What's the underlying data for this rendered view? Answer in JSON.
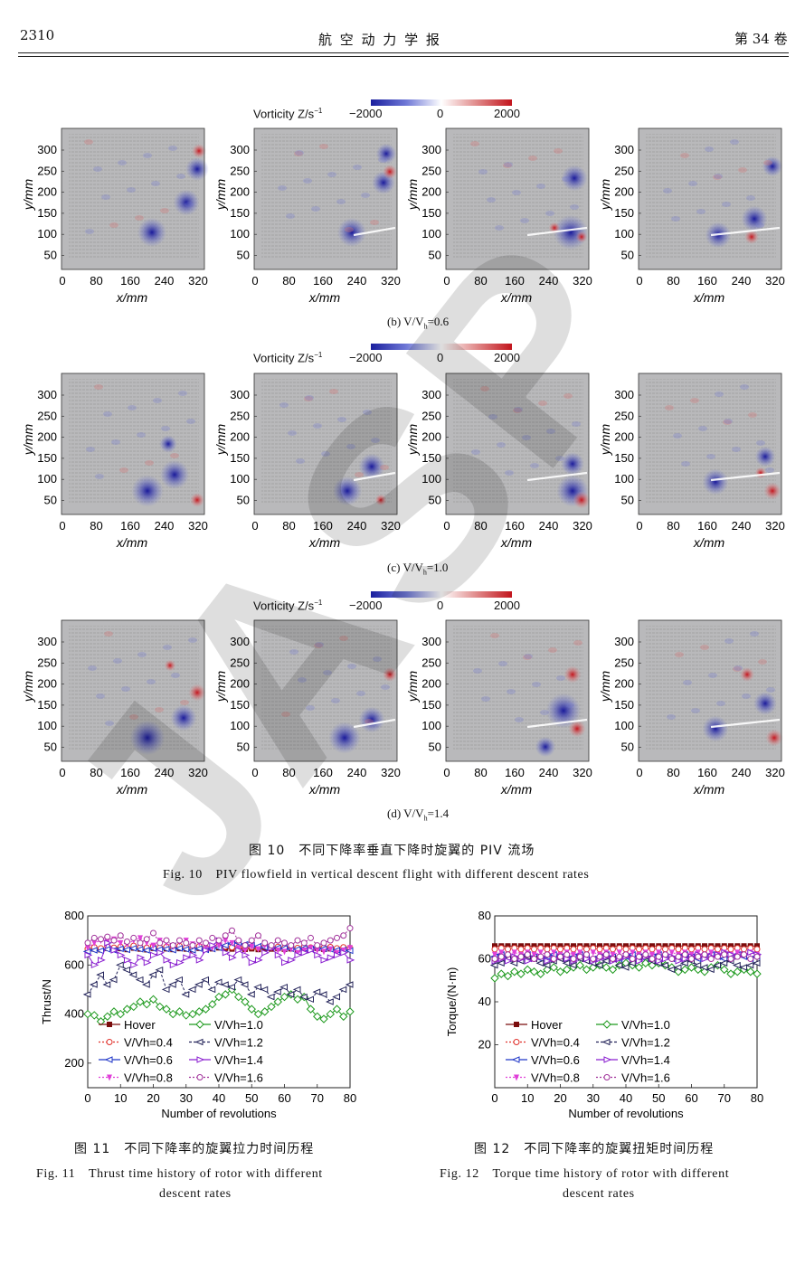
{
  "header": {
    "page_number": "2310",
    "journal": "航 空 动 力 学 报",
    "volume": "第 34 卷"
  },
  "colorbar": {
    "label": "Vorticity Z/s",
    "superscript": "−1",
    "min": "−2000",
    "mid": "0",
    "max": "2000"
  },
  "panels": {
    "xlabel": "x/mm",
    "ylabel": "y/mm",
    "x_ticks": [
      "0",
      "80",
      "160",
      "240",
      "320"
    ],
    "y_ticks": [
      "300",
      "250",
      "200",
      "150",
      "100",
      "50"
    ]
  },
  "rows": [
    {
      "caption_prefix": "(b) V/V",
      "caption_sub": "h",
      "caption_suffix": "=0.6"
    },
    {
      "caption_prefix": "(c) V/V",
      "caption_sub": "h",
      "caption_suffix": "=1.0"
    },
    {
      "caption_prefix": "(d) V/V",
      "caption_sub": "h",
      "caption_suffix": "=1.4"
    }
  ],
  "fig10": {
    "caption_cn": "图 10　不同下降率垂直下降时旋翼的 PIV 流场",
    "caption_en": "Fig. 10　PIV flowfield in vertical descent flight with different descent rates"
  },
  "fig11": {
    "caption_cn": "图 11　不同下降率的旋翼拉力时间历程",
    "caption_en1": "Fig. 11　Thrust time history of rotor with different",
    "caption_en2": "descent rates"
  },
  "fig12": {
    "caption_cn": "图 12　不同下降率的旋翼扭矩时间历程",
    "caption_en1": "Fig. 12　Torque time history of rotor with different",
    "caption_en2": "descent rates"
  },
  "watermark": "JASP",
  "colors": {
    "hover": "#7a0c0c",
    "v04": "#e0302a",
    "v06": "#1f36c8",
    "v08": "#e040d8",
    "v10": "#1e9a1e",
    "v12": "#24245a",
    "v14": "#8a1fd0",
    "v16": "#a0309a"
  },
  "chart_data": [
    {
      "type": "line",
      "xlabel": "Number of revolutions",
      "ylabel": "Thrust/N",
      "xlim": [
        0,
        80
      ],
      "ylim": [
        100,
        800
      ],
      "x_ticks": [
        0,
        10,
        20,
        30,
        40,
        50,
        60,
        70,
        80
      ],
      "y_ticks": [
        200,
        400,
        600,
        800
      ],
      "grid": false,
      "legend": "bottom-left, two columns",
      "x": [
        0,
        2,
        4,
        6,
        8,
        10,
        12,
        14,
        16,
        18,
        20,
        22,
        24,
        26,
        28,
        30,
        32,
        34,
        36,
        38,
        40,
        42,
        44,
        46,
        48,
        50,
        52,
        54,
        56,
        58,
        60,
        62,
        64,
        66,
        68,
        70,
        72,
        74,
        76,
        78,
        80
      ],
      "series": [
        {
          "name": "Hover",
          "values": [
            660,
            665,
            662,
            668,
            664,
            667,
            663,
            669,
            665,
            662,
            668,
            664,
            666,
            663,
            667,
            665,
            662,
            668,
            664,
            666,
            670,
            668,
            665,
            667,
            664,
            666,
            663,
            668,
            665,
            667,
            664,
            666,
            663,
            667,
            665,
            668,
            664,
            666,
            662,
            665,
            663
          ]
        },
        {
          "name": "V/Vh=0.4",
          "values": [
            665,
            672,
            668,
            676,
            670,
            674,
            669,
            678,
            672,
            670,
            676,
            671,
            674,
            668,
            677,
            672,
            669,
            676,
            671,
            674,
            678,
            675,
            672,
            674,
            670,
            673,
            669,
            676,
            672,
            674,
            670,
            673,
            669,
            675,
            671,
            676,
            670,
            673,
            668,
            672,
            669
          ]
        },
        {
          "name": "V/Vh=0.6",
          "values": [
            655,
            660,
            658,
            664,
            660,
            666,
            662,
            668,
            664,
            660,
            667,
            663,
            665,
            661,
            668,
            664,
            660,
            667,
            662,
            665,
            670,
            680,
            688,
            690,
            684,
            680,
            676,
            672,
            674,
            670,
            668,
            666,
            664,
            668,
            665,
            670,
            666,
            664,
            660,
            662,
            658
          ]
        },
        {
          "name": "V/Vh=0.8",
          "values": [
            670,
            690,
            700,
            695,
            705,
            690,
            685,
            700,
            710,
            690,
            680,
            700,
            690,
            675,
            695,
            700,
            685,
            690,
            675,
            670,
            680,
            700,
            690,
            670,
            660,
            675,
            665,
            680,
            670,
            660,
            655,
            665,
            650,
            660,
            670,
            660,
            655,
            665,
            650,
            660,
            670
          ]
        },
        {
          "name": "V/Vh=1.0",
          "values": [
            400,
            395,
            370,
            390,
            410,
            400,
            420,
            430,
            450,
            440,
            460,
            430,
            420,
            400,
            410,
            395,
            400,
            410,
            420,
            440,
            470,
            480,
            500,
            470,
            450,
            420,
            400,
            410,
            430,
            450,
            470,
            480,
            460,
            470,
            420,
            390,
            380,
            400,
            420,
            390,
            410
          ]
        },
        {
          "name": "V/Vh=1.2",
          "values": [
            480,
            520,
            560,
            520,
            540,
            600,
            580,
            560,
            540,
            520,
            560,
            580,
            500,
            520,
            540,
            480,
            500,
            520,
            540,
            500,
            530,
            520,
            510,
            540,
            520,
            480,
            510,
            500,
            470,
            490,
            510,
            480,
            500,
            470,
            460,
            490,
            480,
            450,
            470,
            500,
            520
          ]
        },
        {
          "name": "V/Vh=1.4",
          "values": [
            640,
            600,
            620,
            690,
            660,
            640,
            620,
            600,
            630,
            610,
            640,
            650,
            620,
            600,
            610,
            630,
            640,
            620,
            660,
            680,
            700,
            650,
            630,
            660,
            640,
            610,
            620,
            650,
            670,
            640,
            610,
            620,
            640,
            650,
            660,
            640,
            620,
            630,
            640,
            650,
            620
          ]
        },
        {
          "name": "V/Vh=1.6",
          "values": [
            690,
            710,
            705,
            715,
            700,
            720,
            695,
            710,
            690,
            705,
            730,
            690,
            700,
            680,
            700,
            690,
            680,
            700,
            690,
            710,
            700,
            720,
            740,
            700,
            680,
            700,
            720,
            690,
            680,
            700,
            690,
            680,
            700,
            690,
            710,
            680,
            690,
            700,
            710,
            720,
            750
          ]
        }
      ]
    },
    {
      "type": "line",
      "xlabel": "Number of revolutions",
      "ylabel": "Torque/(N·m)",
      "xlim": [
        0,
        80
      ],
      "ylim": [
        0,
        80
      ],
      "x_ticks": [
        0,
        10,
        20,
        30,
        40,
        50,
        60,
        70,
        80
      ],
      "y_ticks": [
        20,
        40,
        60,
        80
      ],
      "grid": false,
      "legend": "bottom-left, two columns",
      "x": [
        0,
        2,
        4,
        6,
        8,
        10,
        12,
        14,
        16,
        18,
        20,
        22,
        24,
        26,
        28,
        30,
        32,
        34,
        36,
        38,
        40,
        42,
        44,
        46,
        48,
        50,
        52,
        54,
        56,
        58,
        60,
        62,
        64,
        66,
        68,
        70,
        72,
        74,
        76,
        78,
        80
      ],
      "series": [
        {
          "name": "Hover",
          "values": [
            66,
            66,
            66,
            66,
            66,
            66,
            66,
            66,
            66,
            66,
            66,
            66,
            66,
            66,
            66,
            66,
            66,
            66,
            66,
            66,
            66,
            66,
            66,
            66,
            66,
            66,
            66,
            66,
            66,
            66,
            66,
            66,
            66,
            66,
            66,
            66,
            66,
            66,
            66,
            66,
            66
          ]
        },
        {
          "name": "V/Vh=0.4",
          "values": [
            64.5,
            65,
            64.5,
            65,
            64.5,
            65,
            64.5,
            65,
            64.5,
            65,
            64.5,
            65,
            64.5,
            65,
            64.5,
            65,
            64.5,
            65,
            64.5,
            65,
            64.5,
            65,
            64.5,
            65,
            64.5,
            65,
            64.5,
            65,
            64.5,
            65,
            64.5,
            65,
            64.5,
            65,
            64.5,
            65,
            64.5,
            65,
            64.5,
            65,
            64.5
          ]
        },
        {
          "name": "V/Vh=0.6",
          "values": [
            61,
            62,
            61,
            60,
            61,
            62,
            61,
            60,
            61,
            62,
            61,
            60,
            61,
            62,
            61,
            60,
            61,
            62,
            61,
            60,
            61,
            62,
            61,
            60,
            61,
            62,
            61,
            60,
            61,
            62,
            61,
            60,
            61,
            62,
            61,
            60,
            61,
            62,
            61,
            60,
            61
          ]
        },
        {
          "name": "V/Vh=0.8",
          "values": [
            62,
            63,
            62,
            63,
            62,
            63,
            62,
            63,
            62,
            63,
            62,
            63,
            62,
            63,
            62,
            63,
            62,
            63,
            62,
            63,
            62,
            63,
            62,
            63,
            62,
            63,
            62,
            63,
            62,
            63,
            62,
            63,
            62,
            63,
            62,
            63,
            62,
            63,
            62,
            63,
            62
          ]
        },
        {
          "name": "V/Vh=1.0",
          "values": [
            51,
            53,
            52,
            54,
            53,
            55,
            54,
            53,
            55,
            56,
            54,
            55,
            56,
            57,
            55,
            56,
            57,
            56,
            55,
            57,
            58,
            57,
            56,
            58,
            57,
            58,
            57,
            56,
            54,
            55,
            56,
            55,
            54,
            56,
            57,
            55,
            53,
            54,
            55,
            54,
            53
          ]
        },
        {
          "name": "V/Vh=1.2",
          "values": [
            57,
            58,
            60,
            58,
            59,
            61,
            60,
            58,
            57,
            59,
            60,
            58,
            57,
            60,
            59,
            58,
            57,
            59,
            60,
            57,
            56,
            58,
            60,
            61,
            59,
            58,
            57,
            55,
            56,
            58,
            59,
            57,
            56,
            55,
            57,
            58,
            59,
            57,
            56,
            57,
            58
          ]
        },
        {
          "name": "V/Vh=1.4",
          "values": [
            59,
            60,
            59,
            61,
            60,
            59,
            60,
            61,
            59,
            60,
            61,
            60,
            59,
            61,
            60,
            59,
            60,
            61,
            59,
            60,
            61,
            60,
            59,
            61,
            60,
            59,
            60,
            61,
            59,
            60,
            61,
            62,
            60,
            61,
            62,
            63,
            62,
            61,
            62,
            63,
            62
          ]
        },
        {
          "name": "V/Vh=1.6",
          "values": [
            60,
            61,
            62,
            60,
            61,
            62,
            60,
            61,
            62,
            60,
            61,
            62,
            60,
            61,
            62,
            60,
            61,
            62,
            60,
            61,
            62,
            60,
            61,
            62,
            60,
            61,
            62,
            60,
            61,
            62,
            60,
            61,
            62,
            60,
            61,
            62,
            60,
            61,
            62,
            60,
            61
          ]
        }
      ]
    }
  ]
}
